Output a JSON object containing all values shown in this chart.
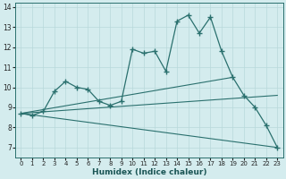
{
  "xlabel": "Humidex (Indice chaleur)",
  "bg_color": "#d4ecee",
  "grid_color": "#b8d8da",
  "line_color": "#2a706e",
  "x_ticks": [
    0,
    1,
    2,
    3,
    4,
    5,
    6,
    7,
    8,
    9,
    10,
    11,
    12,
    13,
    14,
    15,
    16,
    17,
    18,
    19,
    20,
    21,
    22,
    23
  ],
  "ylim": [
    6.5,
    14.2
  ],
  "yticks": [
    7,
    8,
    9,
    10,
    11,
    12,
    13,
    14
  ],
  "xlim": [
    -0.5,
    23.5
  ],
  "line1_x": [
    0,
    1,
    2,
    3,
    4,
    5,
    6,
    7,
    8,
    9,
    10,
    11,
    12,
    13,
    14,
    15,
    16,
    17,
    18,
    19,
    20,
    21,
    22,
    23
  ],
  "line1_y": [
    8.7,
    8.6,
    8.8,
    9.8,
    10.3,
    10.0,
    9.9,
    9.3,
    9.1,
    9.3,
    11.9,
    11.7,
    11.8,
    10.8,
    13.3,
    13.6,
    12.7,
    13.5,
    11.8,
    10.5,
    9.6,
    9.0,
    8.1,
    7.0
  ],
  "line2_x": [
    0,
    19
  ],
  "line2_y": [
    8.7,
    10.5
  ],
  "line3_x": [
    0,
    23
  ],
  "line3_y": [
    8.7,
    9.6
  ],
  "line4_x": [
    0,
    23
  ],
  "line4_y": [
    8.7,
    7.0
  ],
  "figsize": [
    3.2,
    2.0
  ],
  "dpi": 100
}
